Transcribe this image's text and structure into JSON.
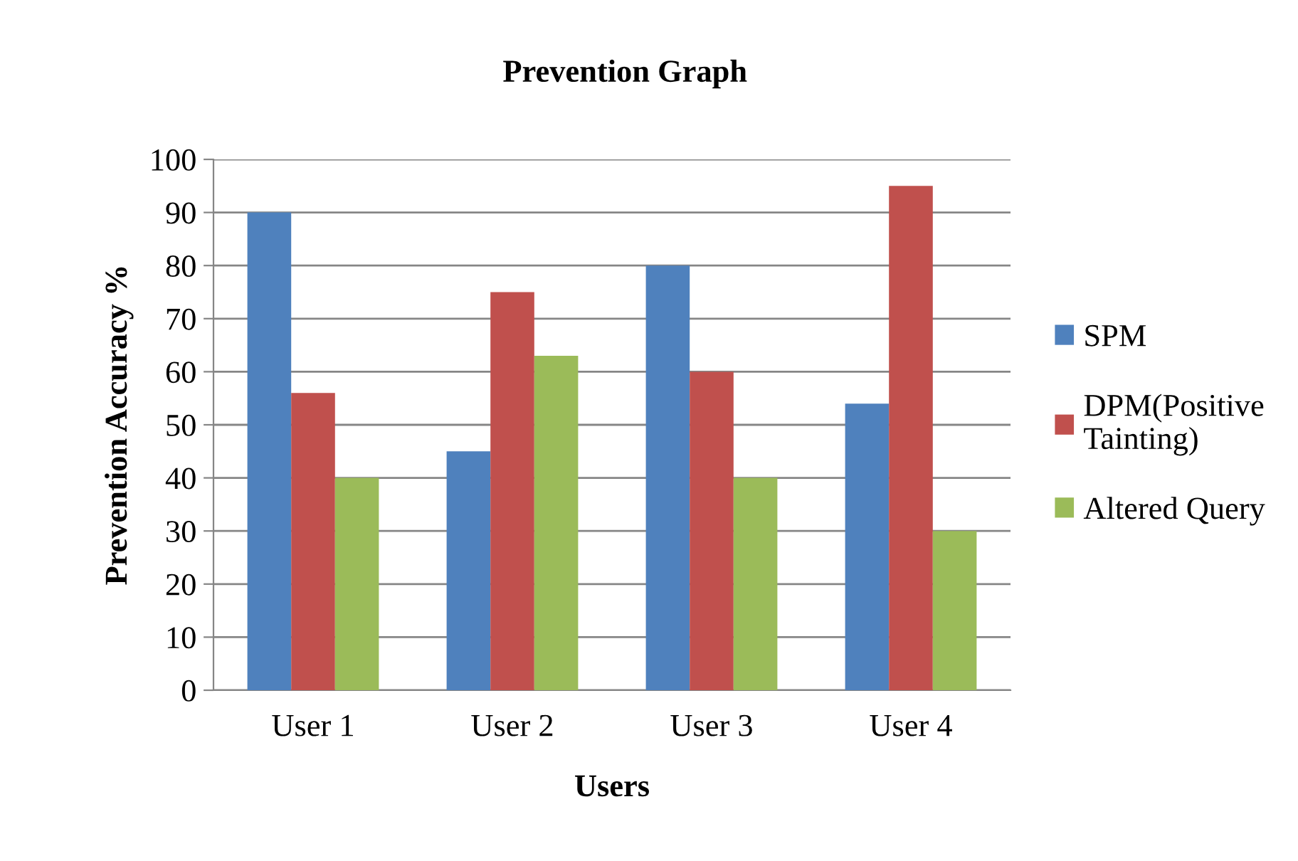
{
  "chart_data": {
    "type": "bar",
    "title": "Prevention Graph",
    "xlabel": "Users",
    "ylabel": "Prevention Accuracy %",
    "categories": [
      "User 1",
      "User 2",
      "User 3",
      "User 4"
    ],
    "series": [
      {
        "name": "SPM",
        "color": "#4f81bd",
        "values": [
          90,
          45,
          80,
          54
        ]
      },
      {
        "name": "DPM(Positive\nTainting)",
        "color": "#c0504d",
        "values": [
          56,
          75,
          60,
          95
        ]
      },
      {
        "name": "Altered Query",
        "color": "#9bbb59",
        "values": [
          40,
          63,
          40,
          30
        ]
      }
    ],
    "ylim": [
      0,
      100
    ],
    "yticks": [
      0,
      10,
      20,
      30,
      40,
      50,
      60,
      70,
      80,
      90,
      100
    ],
    "grid": "y",
    "legend": "right"
  }
}
